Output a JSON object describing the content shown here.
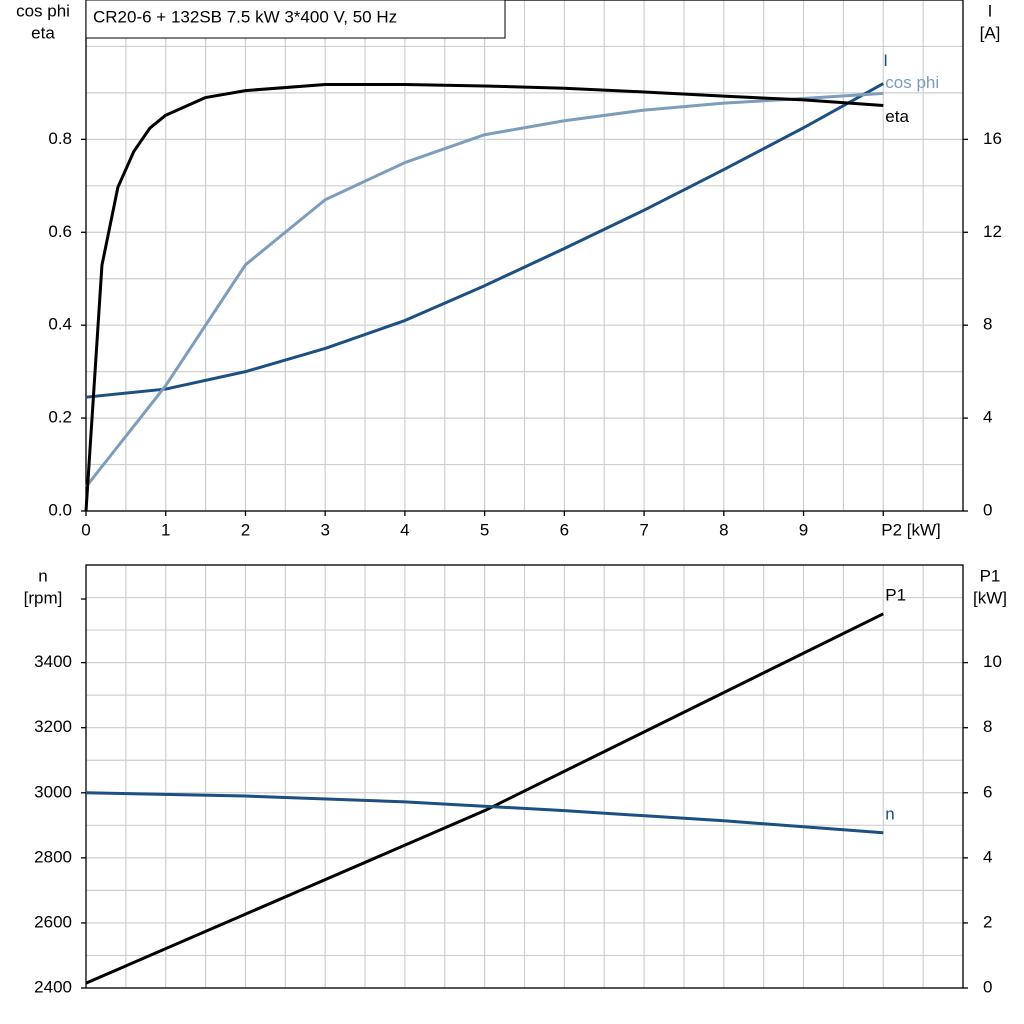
{
  "chart_data": [
    {
      "type": "line",
      "title": "CR20-6 + 132SB   7.5 kW   3*400 V, 50 Hz",
      "ylabel": [
        "cos phi",
        "eta"
      ],
      "y2label": [
        "I",
        "[A]"
      ],
      "xlim": [
        0,
        11
      ],
      "xticks": [
        0,
        1,
        2,
        3,
        4,
        5,
        6,
        7,
        8,
        9,
        {
          "value": 10,
          "label": "P2 [kW]"
        }
      ],
      "minor_xticks": [
        0.5,
        1.5,
        2.5,
        3.5,
        4.5,
        5.5,
        6.5,
        7.5,
        8.5,
        9.5,
        10.5,
        11
      ],
      "ylim": [
        0,
        1.1
      ],
      "yticks": [
        {
          "value": 0,
          "label": "0.0"
        },
        0.2,
        0.4,
        0.6,
        0.8
      ],
      "minor_yticks": [
        0.1,
        0.3,
        0.5,
        0.7,
        0.9,
        1.0,
        1.1
      ],
      "y2lim": [
        0,
        22
      ],
      "y2ticks": [
        0,
        4,
        8,
        12,
        16
      ],
      "grid": true,
      "series": [
        {
          "name": "I",
          "color": "#1c4f82",
          "axis": "y2",
          "x": [
            0,
            1,
            2,
            3,
            4,
            5,
            6,
            7,
            8,
            9,
            10
          ],
          "values": [
            4.9,
            5.25,
            6.0,
            7.0,
            8.2,
            9.7,
            11.3,
            12.95,
            14.7,
            16.5,
            18.4
          ]
        },
        {
          "name": "cos phi",
          "color": "#7d9dbd",
          "x": [
            0,
            1,
            2,
            3,
            4,
            5,
            6,
            7,
            8,
            9,
            10
          ],
          "values": [
            0.052,
            0.27,
            0.53,
            0.67,
            0.75,
            0.81,
            0.84,
            0.863,
            0.878,
            0.888,
            0.899
          ]
        },
        {
          "name": "eta",
          "color": "#000000",
          "x": [
            0,
            0.2,
            0.4,
            0.6,
            0.8,
            1,
            1.5,
            2,
            3,
            4,
            5,
            6,
            7,
            8,
            9,
            10
          ],
          "values": [
            0,
            0.529,
            0.697,
            0.774,
            0.824,
            0.852,
            0.89,
            0.905,
            0.918,
            0.918,
            0.915,
            0.91,
            0.902,
            0.893,
            0.885,
            0.873
          ]
        }
      ]
    },
    {
      "type": "line",
      "ylabel": [
        "n",
        "[rpm]"
      ],
      "y2label": [
        "P1",
        "[kW]"
      ],
      "xlim": [
        0,
        11
      ],
      "minor_xticks": [
        0.5,
        1,
        1.5,
        2,
        2.5,
        3,
        3.5,
        4,
        4.5,
        5,
        5.5,
        6,
        6.5,
        7,
        7.5,
        8,
        8.5,
        9,
        9.5,
        10,
        10.5,
        11
      ],
      "ylim": [
        2400,
        3700
      ],
      "yticks": [
        2400,
        2600,
        2800,
        3000,
        3200,
        3400
      ],
      "minor_yticks": [
        2500,
        2700,
        2900,
        3100,
        3300,
        3500,
        3600,
        3700
      ],
      "y2lim": [
        0,
        13
      ],
      "y2ticks": [
        0,
        2,
        4,
        6,
        8,
        10
      ],
      "grid": true,
      "series": [
        {
          "name": "P1",
          "color": "#000000",
          "axis": "y2",
          "x": [
            0,
            5,
            10
          ],
          "values": [
            0.15,
            5.45,
            11.5
          ]
        },
        {
          "name": "n",
          "color": "#1c4f82",
          "x": [
            0,
            2,
            4,
            6,
            8,
            10
          ],
          "values": [
            3000,
            2990,
            2972,
            2945,
            2914,
            2877
          ]
        }
      ]
    }
  ]
}
